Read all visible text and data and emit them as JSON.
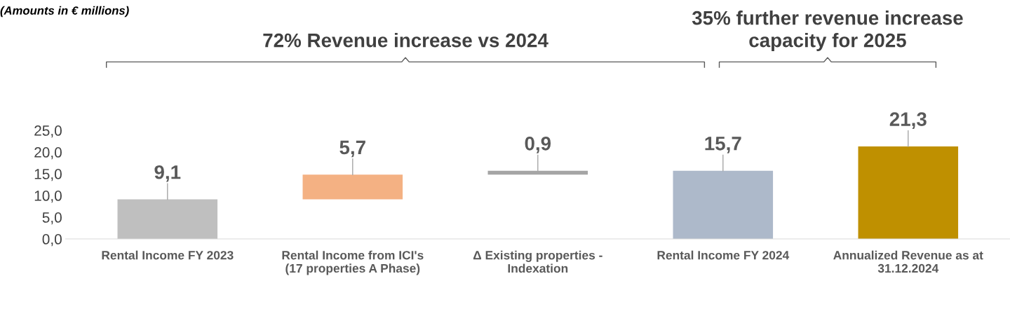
{
  "chart_data": {
    "type": "bar",
    "categories": [
      "Rental Income FY 2023",
      "Rental Income from ICI's (17 properties A Phase)",
      "Δ Existing properties - Indexation",
      "Rental Income FY 2024",
      "Annualized Revenue as at 31.12.2024"
    ],
    "values": [
      9.1,
      5.7,
      0.9,
      15.7,
      21.3
    ],
    "base": [
      0,
      9.1,
      14.8,
      0,
      0
    ],
    "colors": [
      "#bfbfbf",
      "#f4b183",
      "#a5a5a5",
      "#adb9ca",
      "#bf9000"
    ],
    "value_labels": [
      "9,1",
      "5,7",
      "0,9",
      "15,7",
      "21,3"
    ],
    "ylim": [
      0,
      25
    ],
    "yticks": [
      {
        "value": 0,
        "label": "0,0"
      },
      {
        "value": 5,
        "label": "5,0"
      },
      {
        "value": 10,
        "label": "10,0"
      },
      {
        "value": 15,
        "label": "15,0"
      },
      {
        "value": 20,
        "label": "20,0"
      },
      {
        "value": 25,
        "label": "25,0"
      }
    ],
    "grid": false,
    "annotations": [
      "(Amounts in € millions)",
      "72% Revenue increase vs 2024",
      "35% further revenue increase capacity for 2025"
    ]
  }
}
